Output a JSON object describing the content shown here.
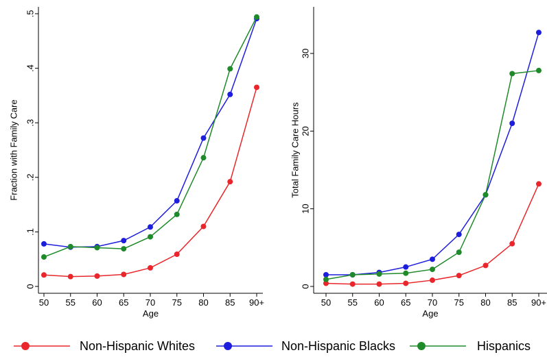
{
  "chart_data": [
    {
      "type": "line",
      "xlabel": "Age",
      "ylabel": "Fraction with Family Care",
      "categories": [
        "50",
        "55",
        "60",
        "65",
        "70",
        "75",
        "80",
        "85",
        "90+"
      ],
      "ylim": [
        0,
        0.5
      ],
      "yticks": [
        0,
        0.1,
        0.2,
        0.3,
        0.4,
        0.5
      ],
      "ytick_labels": [
        "0",
        ".1",
        ".2",
        ".3",
        ".4",
        ".5"
      ],
      "grid": false,
      "series": [
        {
          "name": "Non-Hispanic Whites",
          "color": "#e8262b",
          "values": [
            0.021,
            0.018,
            0.019,
            0.022,
            0.034,
            0.059,
            0.11,
            0.192,
            0.365
          ]
        },
        {
          "name": "Non-Hispanic Blacks",
          "color": "#1d1ddd",
          "values": [
            0.078,
            0.072,
            0.073,
            0.084,
            0.109,
            0.157,
            0.272,
            0.352,
            0.491
          ]
        },
        {
          "name": "Hispanics",
          "color": "#1f8a2a",
          "values": [
            0.054,
            0.073,
            0.071,
            0.069,
            0.091,
            0.132,
            0.236,
            0.399,
            0.494
          ]
        }
      ]
    },
    {
      "type": "line",
      "xlabel": "Age",
      "ylabel": "Total Family Care Hours",
      "categories": [
        "50",
        "55",
        "60",
        "65",
        "70",
        "75",
        "80",
        "85",
        "90+"
      ],
      "ylim": [
        0,
        30
      ],
      "yticks": [
        0,
        10,
        20,
        30
      ],
      "ytick_labels": [
        "0",
        "10",
        "20",
        "30"
      ],
      "grid": false,
      "series": [
        {
          "name": "Non-Hispanic Whites",
          "color": "#e8262b",
          "values": [
            0.4,
            0.3,
            0.3,
            0.4,
            0.8,
            1.4,
            2.7,
            5.5,
            13.2
          ]
        },
        {
          "name": "Non-Hispanic Blacks",
          "color": "#1d1ddd",
          "values": [
            1.5,
            1.5,
            1.8,
            2.5,
            3.5,
            6.7,
            11.8,
            21.0,
            32.7
          ]
        },
        {
          "name": "Hispanics",
          "color": "#1f8a2a",
          "values": [
            0.9,
            1.5,
            1.6,
            1.7,
            2.2,
            4.4,
            11.8,
            27.4,
            27.8
          ]
        }
      ]
    }
  ],
  "legend": {
    "position": "bottom",
    "items": [
      {
        "label": "Non-Hispanic Whites",
        "color": "#e8262b"
      },
      {
        "label": "Non-Hispanic Blacks",
        "color": "#1d1ddd"
      },
      {
        "label": "Hispanics",
        "color": "#1f8a2a"
      }
    ]
  }
}
